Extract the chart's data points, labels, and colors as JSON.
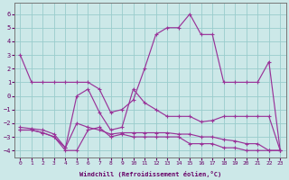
{
  "xlabel": "Windchill (Refroidissement éolien,°C)",
  "background_color": "#cce8e8",
  "grid_color": "#99cccc",
  "line_color": "#993399",
  "ylim": [
    -4.5,
    6.8
  ],
  "xlim": [
    -0.5,
    23.5
  ],
  "yticks": [
    -4,
    -3,
    -2,
    -1,
    0,
    1,
    2,
    3,
    4,
    5,
    6
  ],
  "xticks": [
    0,
    1,
    2,
    3,
    4,
    5,
    6,
    7,
    8,
    9,
    10,
    11,
    12,
    13,
    14,
    15,
    16,
    17,
    18,
    19,
    20,
    21,
    22,
    23
  ],
  "line1_y": [
    3,
    1,
    1,
    1,
    1,
    1,
    1,
    0.5,
    -1.2,
    -1,
    -0.3,
    2,
    4.5,
    5,
    5,
    6,
    4.5,
    4.5,
    1,
    1,
    1,
    1,
    2.5,
    -4
  ],
  "line2_y": [
    -2.5,
    -2.5,
    -2.7,
    -3,
    -4,
    -4,
    -2.5,
    -2.3,
    -3,
    -2.8,
    -3,
    -3,
    -3,
    -3,
    -3,
    -3.5,
    -3.5,
    -3.5,
    -3.8,
    -3.8,
    -4,
    -4,
    -4,
    -4
  ],
  "line3_y": [
    -2.3,
    -2.4,
    -2.5,
    -2.8,
    -3.8,
    0,
    0.5,
    -1.2,
    -2.5,
    -2.3,
    0.5,
    -0.5,
    -1,
    -1.5,
    -1.5,
    -1.5,
    -1.9,
    -1.8,
    -1.5,
    -1.5,
    -1.5,
    -1.5,
    -1.5,
    -4
  ],
  "line4_y": [
    -2.5,
    -2.5,
    -2.7,
    -3,
    -3.8,
    -2,
    -2.3,
    -2.5,
    -2.8,
    -2.7,
    -2.7,
    -2.7,
    -2.7,
    -2.7,
    -2.8,
    -2.8,
    -3,
    -3,
    -3.2,
    -3.3,
    -3.5,
    -3.5,
    -4,
    -4
  ]
}
